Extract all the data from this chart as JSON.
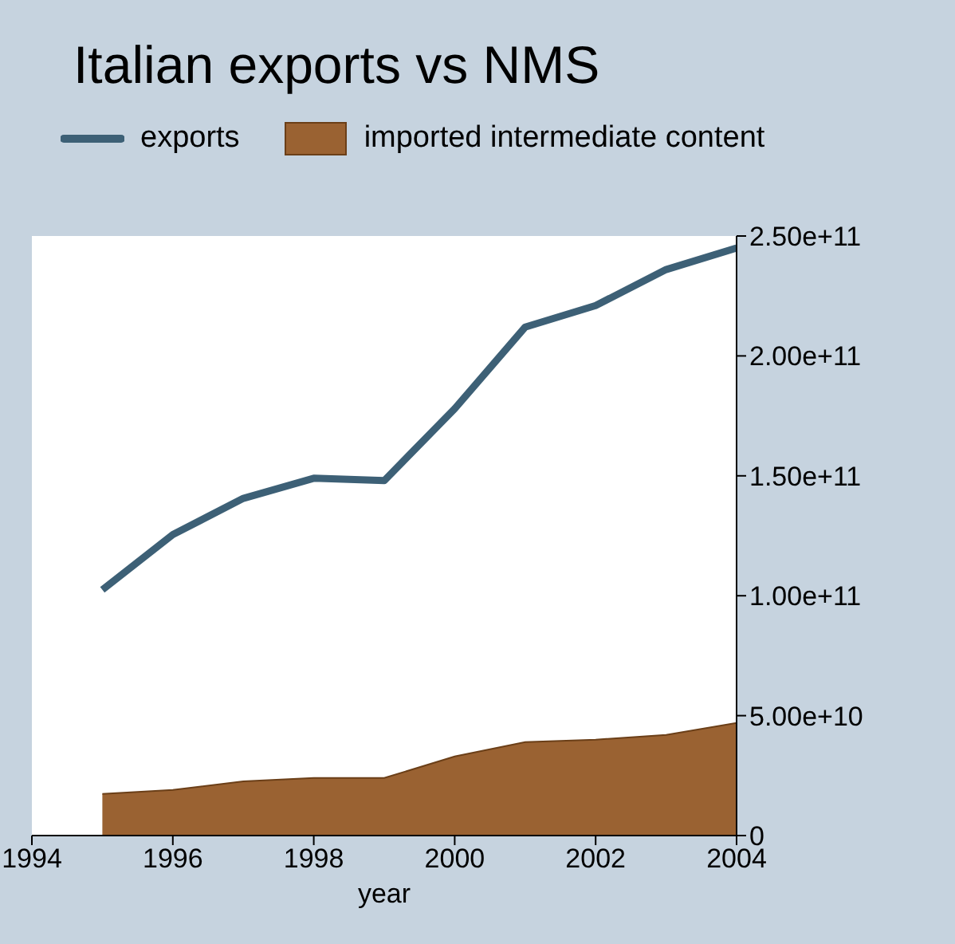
{
  "chart_data": {
    "type": "line",
    "title": "Italian exports vs NMS",
    "xlabel": "year",
    "x": [
      1995,
      1996,
      1997,
      1998,
      1999,
      2000,
      2001,
      2002,
      2003,
      2004
    ],
    "series": [
      {
        "name": "exports",
        "color": "#3d6076",
        "values": [
          102500000000.0,
          125500000000.0,
          140600000000.0,
          149000000000.0,
          148000000000.0,
          178000000000.0,
          212000000000.0,
          221000000000.0,
          236000000000.0,
          245000000000.0
        ]
      },
      {
        "name": "imported intermediate content",
        "type": "area",
        "color": "#9a6232",
        "values": [
          17400000000.0,
          19000000000.0,
          22600000000.0,
          24000000000.0,
          24000000000.0,
          33000000000.0,
          39000000000.0,
          40000000000.0,
          42000000000.0,
          47000000000.0
        ]
      }
    ],
    "xlim": [
      1994,
      2004
    ],
    "xticks": [
      1994,
      1996,
      1998,
      2000,
      2002,
      2004
    ],
    "ylim": [
      0,
      250000000000.0
    ],
    "yticks": [
      0,
      {
        "value": 50000000000.0,
        "label": "5.00e+10"
      },
      {
        "value": 100000000000.0,
        "label": "1.00e+11"
      },
      {
        "value": 150000000000.0,
        "label": "1.50e+11"
      },
      {
        "value": 200000000000.0,
        "label": "2.00e+11"
      },
      {
        "value": 250000000000.0,
        "label": "2.50e+11"
      }
    ],
    "grid": false,
    "legend": "top left",
    "line_style": "solid",
    "marker": "none"
  }
}
